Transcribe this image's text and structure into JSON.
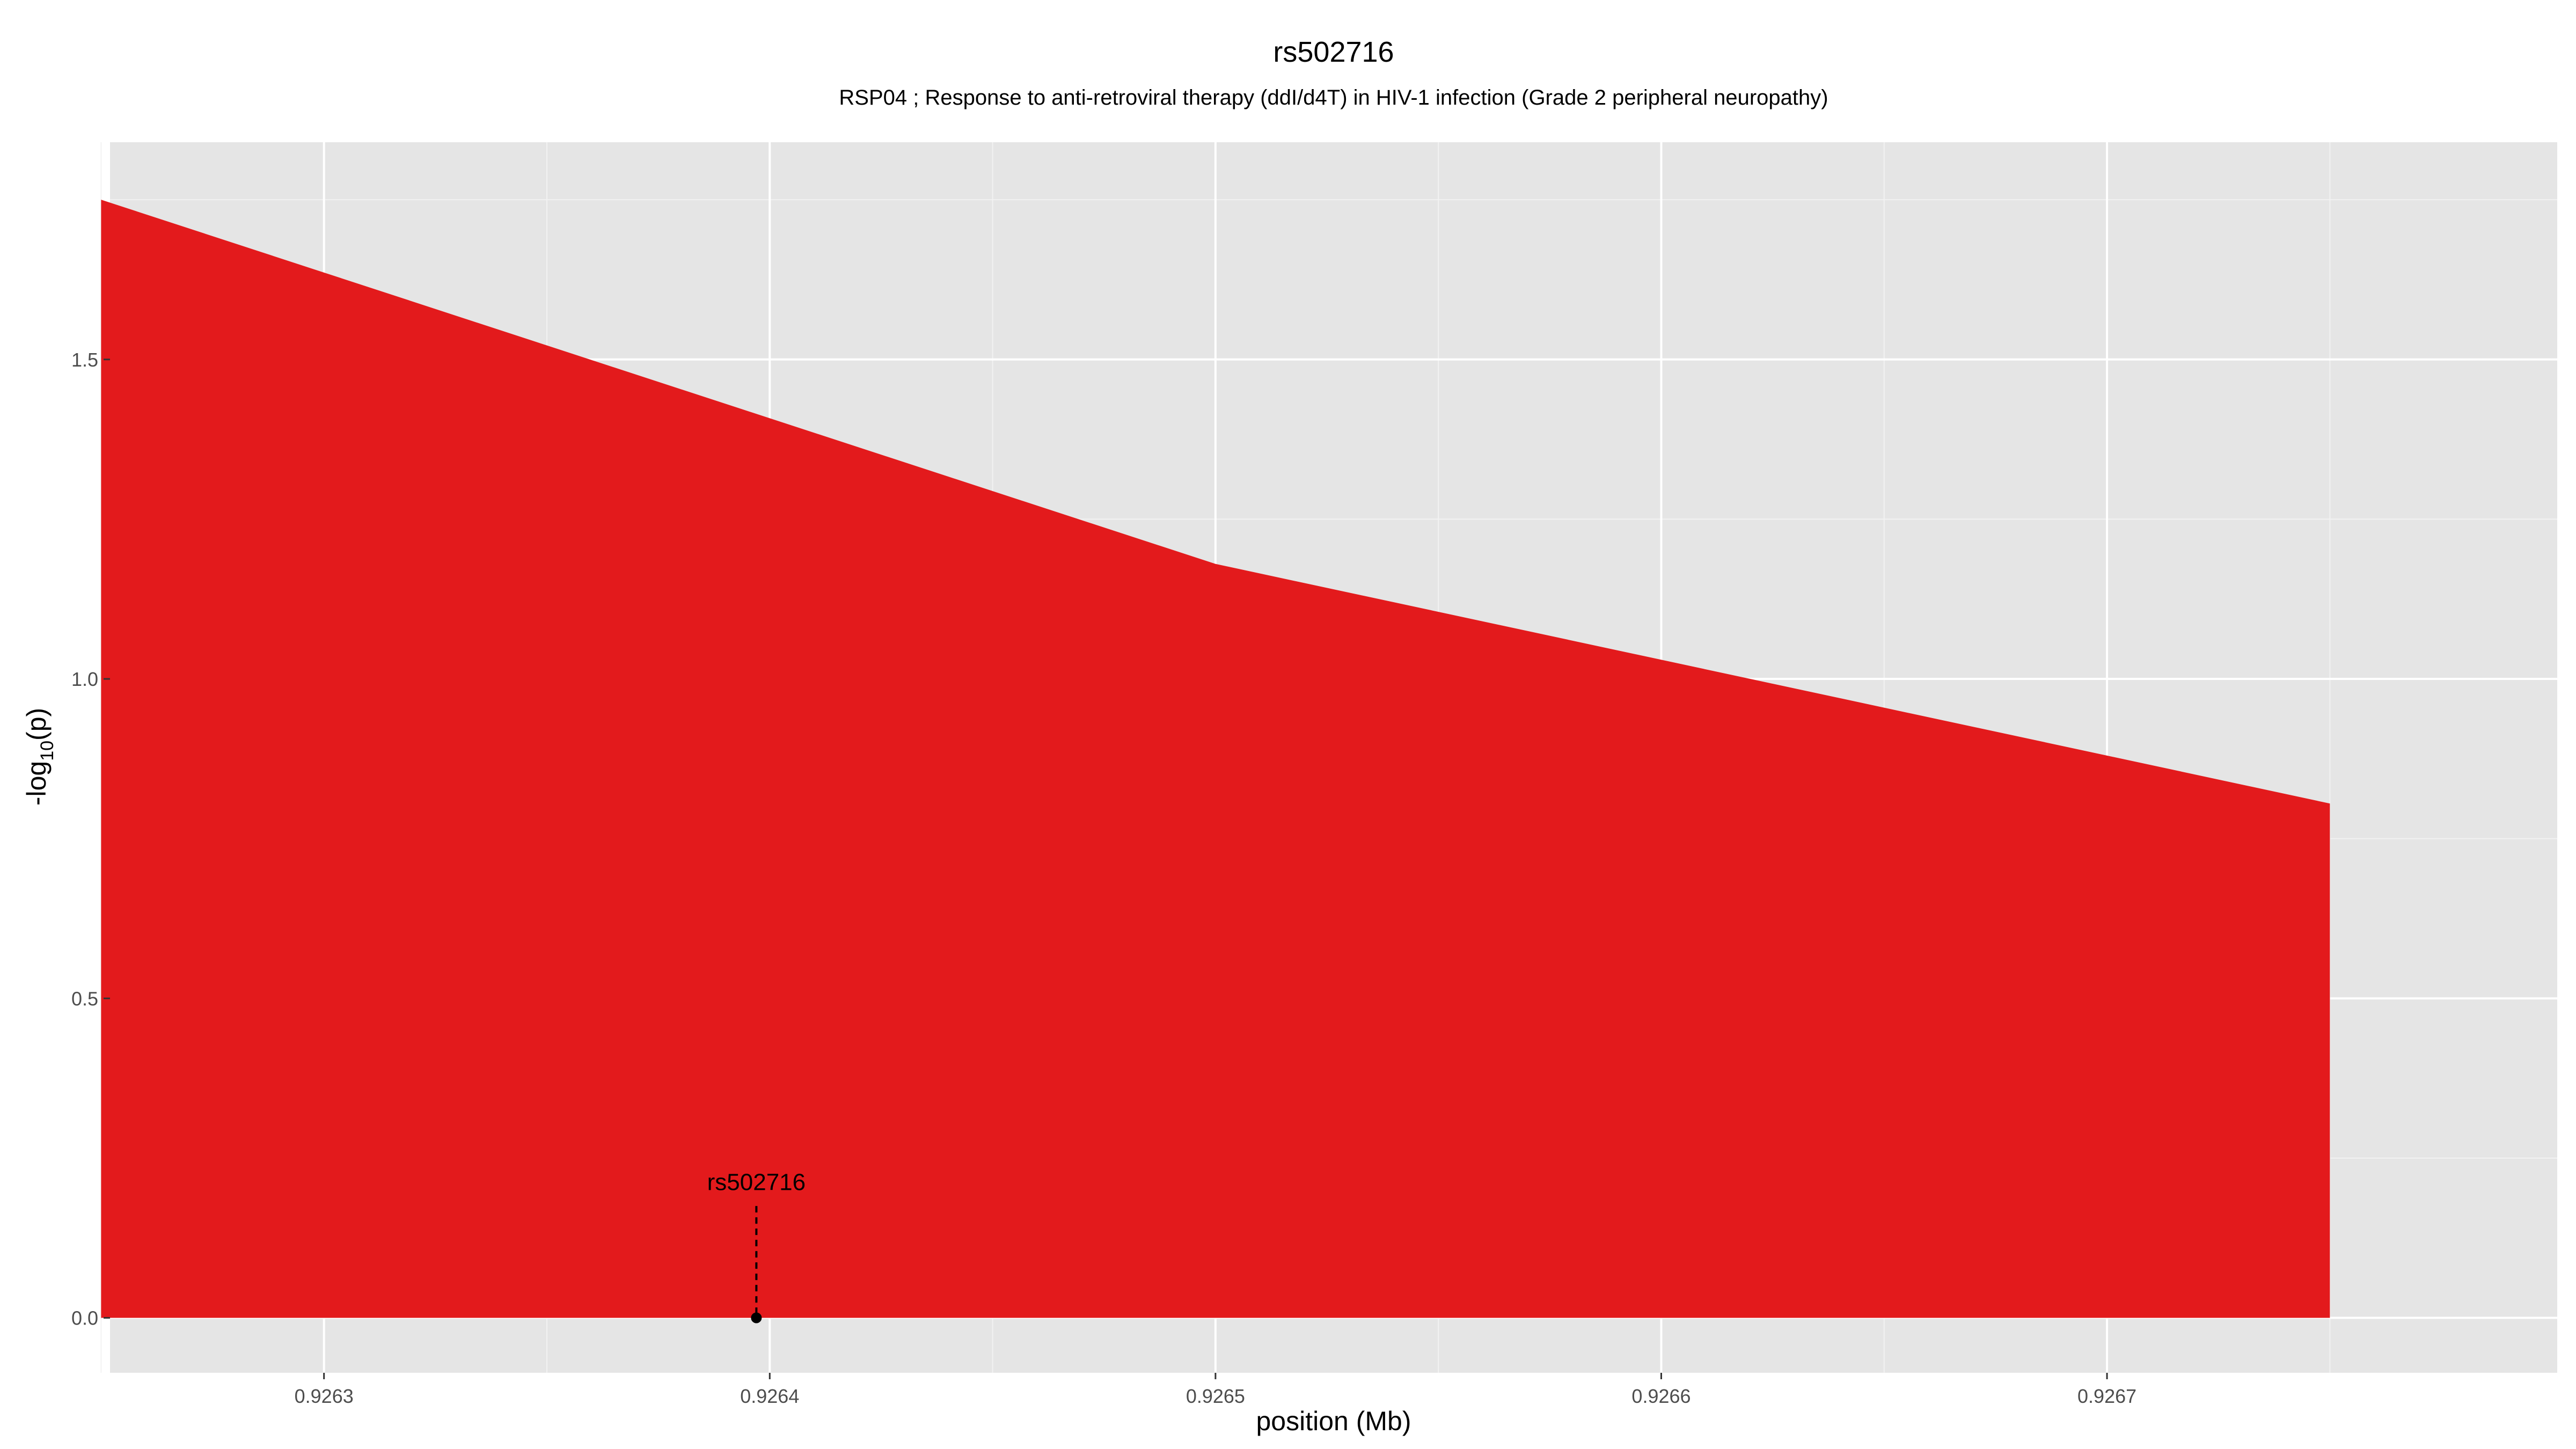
{
  "chart_data": {
    "type": "area",
    "title": "rs502716",
    "subtitle": "RSP04 ; Response to anti-retroviral therapy (ddI/d4T) in HIV-1 infection (Grade 2 peripheral neuropathy)",
    "xlabel": "position (Mb)",
    "ylabel_main": "-log",
    "ylabel_sub": "10",
    "ylabel_tail": "(p)",
    "x_ticks": [
      0.9263,
      0.9264,
      0.9265,
      0.9266,
      0.9267
    ],
    "x_tick_labels": [
      "0.9263",
      "0.9264",
      "0.9265",
      "0.9266",
      "0.9267"
    ],
    "y_ticks": [
      0.0,
      0.5,
      1.0,
      1.5
    ],
    "y_tick_labels": [
      "0.0",
      "0.5",
      "1.0",
      "1.5"
    ],
    "xlim": [
      0.926252,
      0.926801
    ],
    "ylim": [
      -0.086,
      1.84
    ],
    "grid": true,
    "fill_color": "#e31a1c",
    "panel_color": "#e5e5e5",
    "series": [
      {
        "x": [
          0.92625,
          0.9265,
          0.92675
        ],
        "y": [
          1.75,
          1.18,
          0.805
        ]
      }
    ],
    "annotations": [
      {
        "label": "rs502716",
        "x": 0.926397,
        "y": 0.0,
        "line_top": 0.175
      }
    ]
  }
}
